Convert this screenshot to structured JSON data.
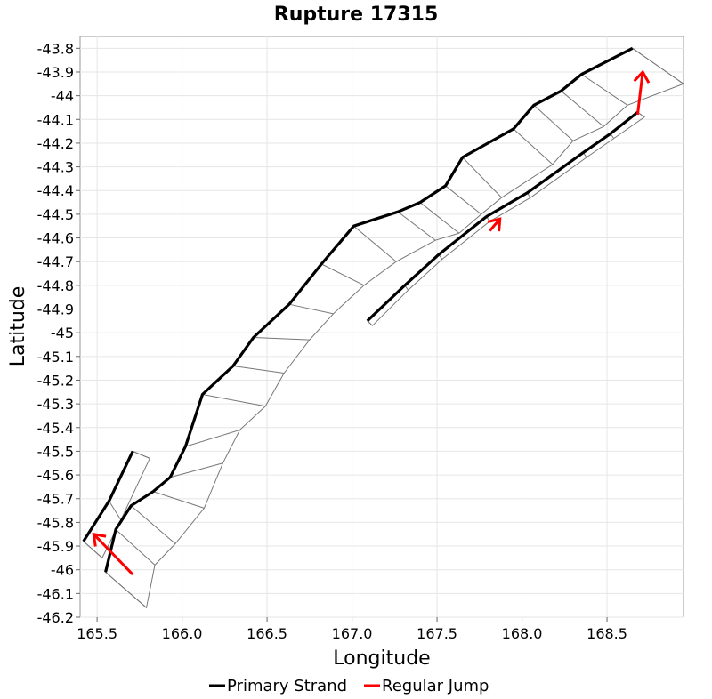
{
  "chart_data": {
    "type": "line",
    "title": "Rupture 17315",
    "xlabel": "Longitude",
    "ylabel": "Latitude",
    "xlim": [
      165.4,
      168.95
    ],
    "ylim": [
      -46.2,
      -43.75
    ],
    "xticks": [
      "165.5",
      "166.0",
      "166.5",
      "167.0",
      "167.5",
      "168.0",
      "168.5"
    ],
    "xtick_values": [
      165.5,
      166.0,
      166.5,
      167.0,
      167.5,
      168.0,
      168.5
    ],
    "yticks": [
      "-43.8",
      "-43.9",
      "-44",
      "-44.1",
      "-44.2",
      "-44.3",
      "-44.4",
      "-44.5",
      "-44.6",
      "-44.7",
      "-44.8",
      "-44.9",
      "-45",
      "-45.1",
      "-45.2",
      "-45.3",
      "-45.4",
      "-45.5",
      "-45.6",
      "-45.7",
      "-45.8",
      "-45.9",
      "-46",
      "-46.1",
      "-46.2"
    ],
    "ytick_values": [
      -43.8,
      -43.9,
      -44.0,
      -44.1,
      -44.2,
      -44.3,
      -44.4,
      -44.5,
      -44.6,
      -44.7,
      -44.8,
      -44.9,
      -45.0,
      -45.1,
      -45.2,
      -45.3,
      -45.4,
      -45.5,
      -45.6,
      -45.7,
      -45.8,
      -45.9,
      -46.0,
      -46.1,
      -46.2
    ],
    "grid": true,
    "legend_position": "bottom",
    "legend": [
      {
        "label": "Primary Strand",
        "color": "#000000"
      },
      {
        "label": "Regular Jump",
        "color": "#ff0000"
      }
    ],
    "series": [
      {
        "name": "Primary Strand",
        "color": "#000000",
        "points": [
          [
            165.42,
            -45.88
          ],
          [
            165.57,
            -45.71
          ],
          [
            165.71,
            -45.5
          ]
        ]
      },
      {
        "name": "Primary Strand",
        "color": "#000000",
        "points": [
          [
            165.55,
            -46.01
          ],
          [
            165.61,
            -45.83
          ],
          [
            165.7,
            -45.73
          ],
          [
            165.83,
            -45.67
          ],
          [
            165.93,
            -45.61
          ],
          [
            166.02,
            -45.48
          ],
          [
            166.12,
            -45.26
          ],
          [
            166.3,
            -45.14
          ],
          [
            166.42,
            -45.02
          ],
          [
            166.63,
            -44.88
          ],
          [
            166.82,
            -44.71
          ],
          [
            167.01,
            -44.55
          ],
          [
            167.27,
            -44.49
          ],
          [
            167.4,
            -44.45
          ],
          [
            167.55,
            -44.38
          ],
          [
            167.65,
            -44.26
          ],
          [
            167.95,
            -44.14
          ],
          [
            168.07,
            -44.04
          ],
          [
            168.23,
            -43.98
          ],
          [
            168.35,
            -43.91
          ],
          [
            168.65,
            -43.8
          ]
        ]
      },
      {
        "name": "Primary Strand",
        "color": "#000000",
        "points": [
          [
            167.09,
            -44.95
          ],
          [
            167.31,
            -44.8
          ],
          [
            167.51,
            -44.67
          ],
          [
            167.79,
            -44.51
          ],
          [
            168.03,
            -44.41
          ],
          [
            168.36,
            -44.24
          ],
          [
            168.52,
            -44.16
          ],
          [
            168.68,
            -44.07
          ]
        ]
      }
    ],
    "jumps": [
      {
        "name": "Regular Jump",
        "color": "#ff0000",
        "from": [
          165.71,
          -46.02
        ],
        "to": [
          165.48,
          -45.85
        ]
      },
      {
        "name": "Regular Jump",
        "color": "#ff0000",
        "from": [
          167.81,
          -44.57
        ],
        "to": [
          167.87,
          -44.52
        ]
      },
      {
        "name": "Regular Jump",
        "color": "#ff0000",
        "from": [
          168.68,
          -44.08
        ],
        "to": [
          168.71,
          -43.9
        ]
      }
    ],
    "fault_surfaces": [
      {
        "top": [
          [
            165.42,
            -45.88
          ],
          [
            165.57,
            -45.71
          ],
          [
            165.71,
            -45.5
          ]
        ],
        "bottom": [
          [
            165.53,
            -45.95
          ],
          [
            165.64,
            -45.79
          ],
          [
            165.81,
            -45.53
          ]
        ]
      },
      {
        "top": [
          [
            165.55,
            -46.01
          ],
          [
            165.61,
            -45.83
          ],
          [
            165.7,
            -45.73
          ],
          [
            165.83,
            -45.67
          ],
          [
            165.93,
            -45.61
          ],
          [
            166.02,
            -45.48
          ],
          [
            166.12,
            -45.26
          ],
          [
            166.3,
            -45.14
          ],
          [
            166.42,
            -45.02
          ],
          [
            166.63,
            -44.88
          ],
          [
            166.82,
            -44.71
          ],
          [
            167.01,
            -44.55
          ],
          [
            167.27,
            -44.49
          ],
          [
            167.4,
            -44.45
          ],
          [
            167.55,
            -44.38
          ],
          [
            167.65,
            -44.26
          ],
          [
            167.95,
            -44.14
          ],
          [
            168.07,
            -44.04
          ],
          [
            168.23,
            -43.98
          ],
          [
            168.35,
            -43.91
          ],
          [
            168.65,
            -43.8
          ]
        ],
        "bottom": [
          [
            165.79,
            -46.16
          ],
          [
            165.84,
            -45.98
          ],
          [
            165.96,
            -45.89
          ],
          [
            166.13,
            -45.74
          ],
          [
            166.24,
            -45.55
          ],
          [
            166.34,
            -45.41
          ],
          [
            166.49,
            -45.31
          ],
          [
            166.6,
            -45.17
          ],
          [
            166.75,
            -45.03
          ],
          [
            166.89,
            -44.92
          ],
          [
            167.07,
            -44.8
          ],
          [
            167.26,
            -44.7
          ],
          [
            167.49,
            -44.61
          ],
          [
            167.63,
            -44.58
          ],
          [
            167.76,
            -44.5
          ],
          [
            167.88,
            -44.43
          ],
          [
            168.18,
            -44.29
          ],
          [
            168.3,
            -44.19
          ],
          [
            168.48,
            -44.13
          ],
          [
            168.62,
            -44.04
          ],
          [
            168.95,
            -43.95
          ]
        ]
      },
      {
        "top": [
          [
            167.09,
            -44.95
          ],
          [
            167.31,
            -44.8
          ],
          [
            167.51,
            -44.67
          ],
          [
            167.79,
            -44.51
          ],
          [
            168.03,
            -44.41
          ],
          [
            168.36,
            -44.24
          ],
          [
            168.52,
            -44.16
          ],
          [
            168.68,
            -44.07
          ]
        ],
        "bottom": [
          [
            167.12,
            -44.97
          ],
          [
            167.33,
            -44.82
          ],
          [
            167.53,
            -44.69
          ],
          [
            167.81,
            -44.53
          ],
          [
            168.05,
            -44.43
          ],
          [
            168.38,
            -44.26
          ],
          [
            168.54,
            -44.18
          ],
          [
            168.72,
            -44.09
          ]
        ]
      }
    ]
  }
}
